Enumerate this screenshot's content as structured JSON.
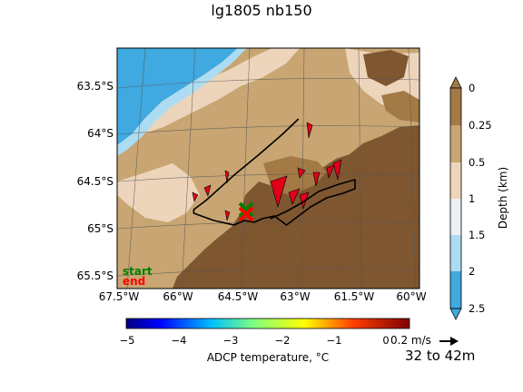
{
  "chart_data": {
    "type": "map",
    "title": "lg1805 nb150",
    "lon_ticks": [
      "67.5°W",
      "66°W",
      "64.5°W",
      "63°W",
      "61.5°W",
      "60°W"
    ],
    "lon_values": [
      -67.5,
      -66,
      -64.5,
      -63,
      -61.5,
      -60
    ],
    "lat_ticks": [
      "63.5°S",
      "64°S",
      "64.5°S",
      "65°S",
      "65.5°S"
    ],
    "lat_values": [
      -63.5,
      -64,
      -64.5,
      -65,
      -65.5
    ],
    "lon_range": [
      -67.5,
      -60
    ],
    "lat_range": [
      -65.75,
      -63.1
    ],
    "legend": {
      "start": "start",
      "end": "end",
      "start_color": "#008000",
      "end_color": "#ff0000"
    },
    "depth_colorbar": {
      "label": "Depth (km)",
      "ticks": [
        "0",
        "0.25",
        "0.5",
        "1",
        "1.5",
        "2",
        "2.5"
      ],
      "colors": [
        "#a37a45",
        "#c8a572",
        "#ecd5bb",
        "#ecf0f3",
        "#acdcf2",
        "#3fa9e0"
      ]
    },
    "temperature_colorbar": {
      "label": "ADCP temperature, °C",
      "ticks": [
        "−5",
        "−4",
        "−3",
        "−2",
        "−1",
        "0"
      ],
      "range": [
        -5,
        0
      ]
    },
    "quiver_key": {
      "label": "0.2 m/s"
    },
    "depth_range_label": "32 to 42m",
    "track": [
      [
        -63.0,
        -63.88
      ],
      [
        -63.4,
        -64.05
      ],
      [
        -64.0,
        -64.28
      ],
      [
        -64.6,
        -64.5
      ],
      [
        -65.3,
        -64.78
      ],
      [
        -65.6,
        -64.88
      ],
      [
        -65.6,
        -64.92
      ],
      [
        -65.1,
        -65.0
      ],
      [
        -64.6,
        -65.05
      ],
      [
        -64.35,
        -65.0
      ],
      [
        -64.1,
        -65.02
      ],
      [
        -63.9,
        -64.98
      ],
      [
        -63.6,
        -64.95
      ],
      [
        -63.3,
        -65.05
      ],
      [
        -63.0,
        -64.95
      ],
      [
        -62.7,
        -64.85
      ],
      [
        -62.3,
        -64.75
      ],
      [
        -61.9,
        -64.7
      ],
      [
        -61.6,
        -64.65
      ],
      [
        -61.6,
        -64.55
      ],
      [
        -62.0,
        -64.6
      ],
      [
        -62.5,
        -64.68
      ],
      [
        -62.9,
        -64.8
      ],
      [
        -63.3,
        -64.9
      ],
      [
        -63.7,
        -64.98
      ]
    ],
    "start": [
      -64.3,
      -64.88
    ],
    "end": [
      -64.3,
      -64.93
    ]
  }
}
